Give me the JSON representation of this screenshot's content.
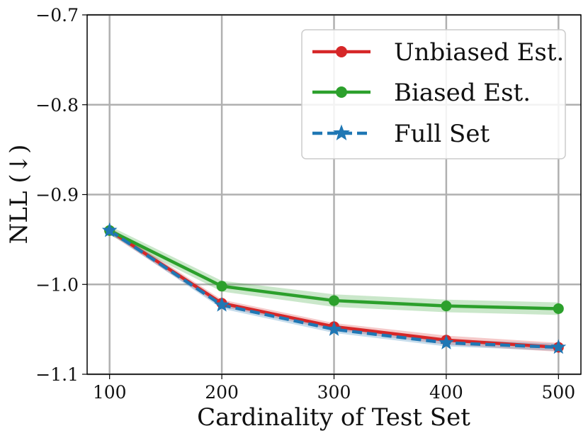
{
  "chart_data": {
    "type": "line",
    "xlabel": "Cardinality of Test Set",
    "ylabel": "NLL (↓)",
    "x": [
      100,
      200,
      300,
      400,
      500
    ],
    "xticks": [
      "100",
      "200",
      "300",
      "400",
      "500"
    ],
    "xlim": [
      80,
      520
    ],
    "yticks": [
      "−1.1",
      "−1.0",
      "−0.9",
      "−0.8",
      "−0.7"
    ],
    "ytick_values": [
      -1.1,
      -1.0,
      -0.9,
      -0.8,
      -0.7
    ],
    "ylim": [
      -1.1,
      -0.7
    ],
    "grid": true,
    "legend_position": "top-right",
    "series": [
      {
        "name": "Unbiased Est.",
        "color": "#d62728",
        "line_style": "solid",
        "marker": "circle",
        "values": [
          -0.94,
          -1.021,
          -1.047,
          -1.062,
          -1.07
        ],
        "band": [
          0.004,
          0.004,
          0.004,
          0.005,
          0.005
        ]
      },
      {
        "name": "Biased Est.",
        "color": "#2ca02c",
        "line_style": "solid",
        "marker": "circle",
        "values": [
          -0.94,
          -1.002,
          -1.018,
          -1.024,
          -1.027
        ],
        "band": [
          0.005,
          0.006,
          0.007,
          0.007,
          0.007
        ]
      },
      {
        "name": "Full Set",
        "color": "#1f77b4",
        "line_style": "dashed",
        "marker": "star",
        "values": [
          -0.94,
          -1.023,
          -1.05,
          -1.065,
          -1.07
        ],
        "band": [
          0.003,
          0.004,
          0.004,
          0.004,
          0.004
        ]
      }
    ]
  }
}
